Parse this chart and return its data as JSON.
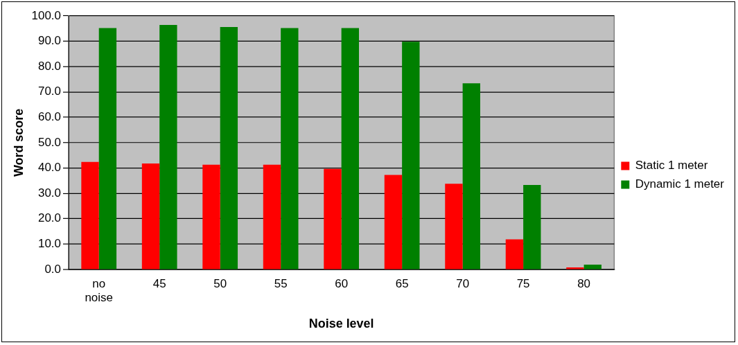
{
  "chart_data": {
    "type": "bar",
    "xlabel": "Noise level",
    "ylabel": "Word score",
    "categories": [
      "no noise",
      "45",
      "50",
      "55",
      "60",
      "65",
      "70",
      "75",
      "80"
    ],
    "series": [
      {
        "name": "Static 1 meter",
        "color": "#ff0000",
        "values": [
          42.4,
          41.8,
          41.3,
          41.3,
          39.7,
          37.3,
          33.8,
          11.9,
          0.8
        ]
      },
      {
        "name": "Dynamic 1 meter",
        "color": "#008000",
        "values": [
          95.2,
          96.4,
          95.6,
          95.2,
          95.2,
          89.8,
          73.4,
          33.3,
          1.9
        ]
      }
    ],
    "ylim": [
      0,
      100
    ],
    "yticks": [
      {
        "value": 0,
        "label": "0.0"
      },
      {
        "value": 10,
        "label": "10.0"
      },
      {
        "value": 20,
        "label": "20.0"
      },
      {
        "value": 30,
        "label": "30.0"
      },
      {
        "value": 40,
        "label": "40.0"
      },
      {
        "value": 50,
        "label": "50.0"
      },
      {
        "value": 60,
        "label": "60.0"
      },
      {
        "value": 70,
        "label": "70.0"
      },
      {
        "value": 80,
        "label": "80.0"
      },
      {
        "value": 90,
        "label": "90.0"
      },
      {
        "value": 100,
        "label": "100.0"
      }
    ],
    "grid": "y",
    "legend": "right"
  }
}
